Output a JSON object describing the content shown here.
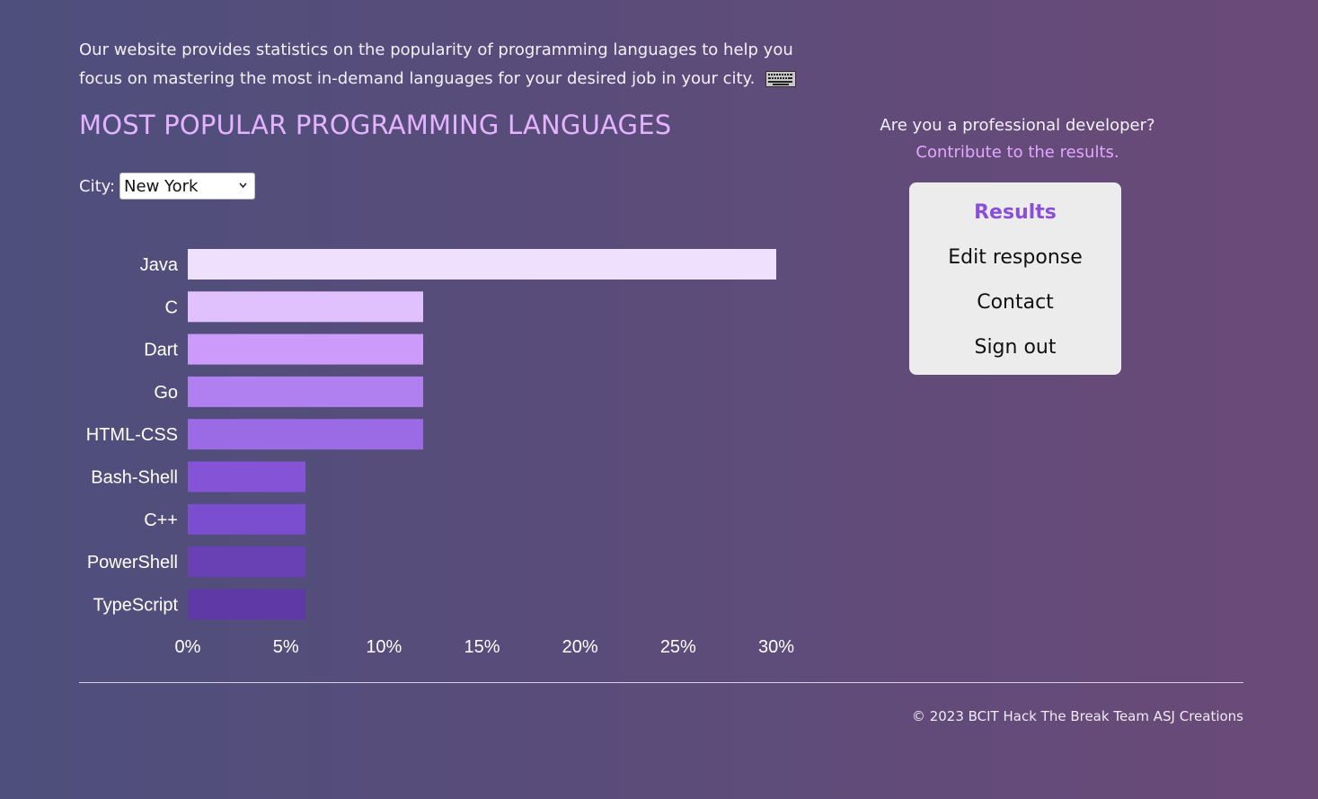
{
  "intro": {
    "text": "Our website provides statistics on the popularity of programming languages to help you focus on mastering the most in-demand languages for your desired job in your city.",
    "icon": "keyboard-icon"
  },
  "title": "MOST POPULAR PROGRAMMING LANGUAGES",
  "city": {
    "label": "City:",
    "selected": "New York"
  },
  "side": {
    "question": "Are you a professional developer?",
    "link": "Contribute to the results."
  },
  "menu": {
    "items": [
      {
        "label": "Results",
        "active": true
      },
      {
        "label": "Edit response",
        "active": false
      },
      {
        "label": "Contact",
        "active": false
      },
      {
        "label": "Sign out",
        "active": false
      }
    ]
  },
  "footer": {
    "text": "© 2023 BCIT Hack The Break Team ASJ Creations"
  },
  "chart_data": {
    "type": "bar",
    "orientation": "horizontal",
    "categories": [
      "Java",
      "C",
      "Dart",
      "Go",
      "HTML-CSS",
      "Bash-Shell",
      "C++",
      "PowerShell",
      "TypeScript"
    ],
    "values": [
      30,
      12,
      12,
      12,
      12,
      6,
      6,
      6,
      6
    ],
    "unit": "%",
    "xlim": [
      0,
      30
    ],
    "xticks": [
      "0%",
      "5%",
      "10%",
      "15%",
      "20%",
      "25%",
      "30%"
    ],
    "xtick_values": [
      0,
      5,
      10,
      15,
      20,
      25,
      30
    ],
    "colors": [
      "#efe0fe",
      "#e0c1fd",
      "#cc9bf9",
      "#b07ff0",
      "#9b6be6",
      "#8553d6",
      "#7b4ecf",
      "#6a40b5",
      "#5f3aa6"
    ],
    "title": "",
    "xlabel": "",
    "ylabel": ""
  }
}
